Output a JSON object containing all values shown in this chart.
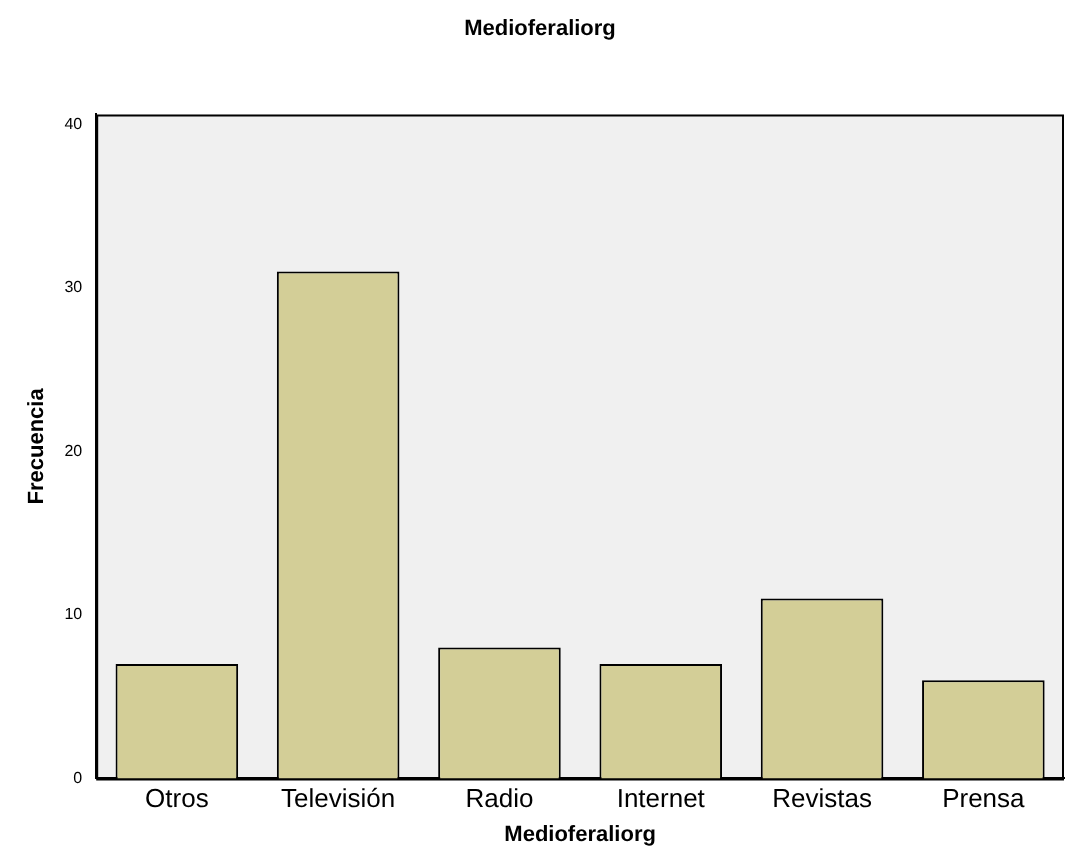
{
  "chart_data": {
    "type": "bar",
    "title": "Medioferaliorg",
    "xlabel": "Medioferaliorg",
    "ylabel": "Frecuencia",
    "categories": [
      "Otros",
      "Televisión",
      "Radio",
      "Internet",
      "Revistas",
      "Prensa"
    ],
    "values": [
      7,
      31,
      8,
      7,
      11,
      6
    ],
    "color": "#d3ce97",
    "ylim": [
      0,
      40.6
    ],
    "yticks": [
      0,
      10,
      20,
      30,
      40
    ],
    "grid": false,
    "legend": false
  }
}
